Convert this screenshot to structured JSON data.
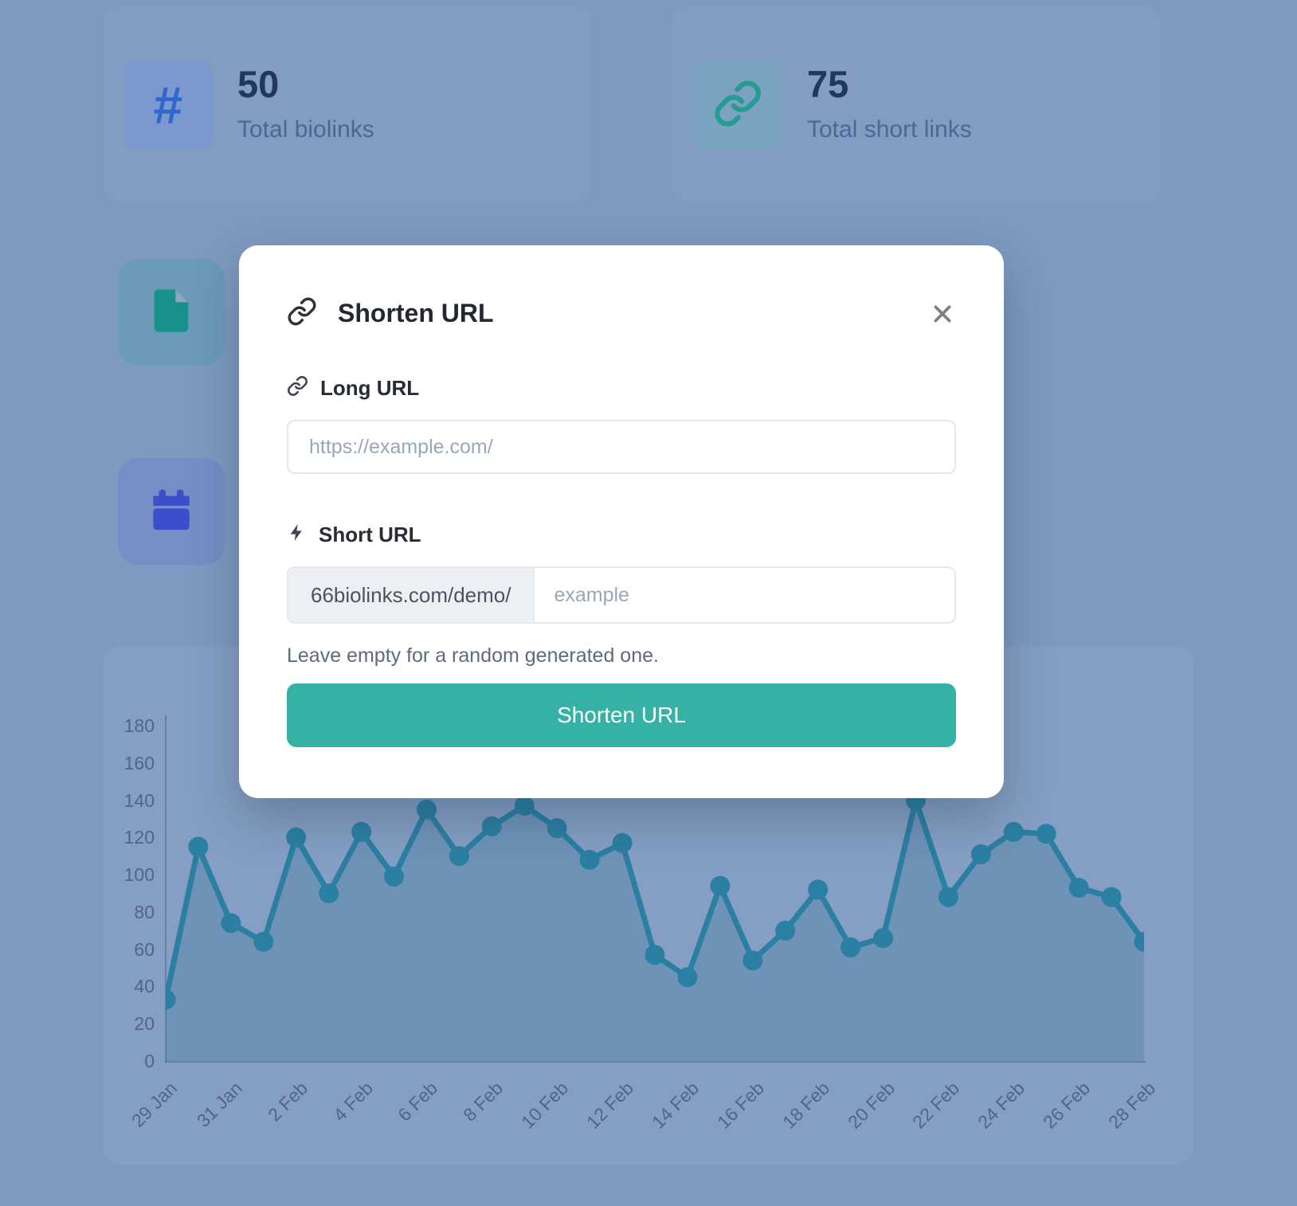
{
  "page": {
    "backdrop_color": "#7e9ac0"
  },
  "stats": [
    {
      "value": "50",
      "label": "Total biolinks",
      "icon": "hash-icon",
      "icon_color": "#2e68cf"
    },
    {
      "value": "75",
      "label": "Total short links",
      "icon": "chain-link-icon",
      "icon_color": "#279a92"
    }
  ],
  "side_tiles": [
    {
      "icon": "file-icon",
      "icon_color": "#17918a"
    },
    {
      "icon": "calendar-icon",
      "icon_color": "#3a4fc9"
    }
  ],
  "modal": {
    "title": "Shorten URL",
    "accent": "#35b2a5",
    "long_url": {
      "label": "Long URL",
      "value": "",
      "placeholder": "https://example.com/"
    },
    "short_url": {
      "label": "Short URL",
      "prefix": "66biolinks.com/demo/",
      "value": "",
      "placeholder": "example",
      "helper": "Leave empty for a random generated one."
    },
    "submit_label": "Shorten URL"
  },
  "chart_data": {
    "type": "line",
    "title": "",
    "xlabel": "",
    "ylabel": "",
    "categories": [
      "29 Jan",
      "30 Jan",
      "31 Jan",
      "1 Feb",
      "2 Feb",
      "3 Feb",
      "4 Feb",
      "5 Feb",
      "6 Feb",
      "7 Feb",
      "8 Feb",
      "9 Feb",
      "10 Feb",
      "11 Feb",
      "12 Feb",
      "13 Feb",
      "14 Feb",
      "15 Feb",
      "16 Feb",
      "17 Feb",
      "18 Feb",
      "19 Feb",
      "20 Feb",
      "21 Feb",
      "22 Feb",
      "23 Feb",
      "24 Feb",
      "25 Feb",
      "26 Feb",
      "27 Feb",
      "28 Feb"
    ],
    "values": [
      33,
      115,
      74,
      64,
      120,
      90,
      123,
      99,
      135,
      110,
      126,
      137,
      125,
      108,
      117,
      57,
      45,
      94,
      54,
      70,
      92,
      61,
      66,
      140,
      88,
      111,
      123,
      122,
      93,
      88,
      64
    ],
    "x_tick_labels": [
      "29 Jan",
      "31 Jan",
      "2 Feb",
      "4 Feb",
      "6 Feb",
      "8 Feb",
      "10 Feb",
      "12 Feb",
      "14 Feb",
      "16 Feb",
      "18 Feb",
      "20 Feb",
      "22 Feb",
      "24 Feb",
      "26 Feb",
      "28 Feb"
    ],
    "y_ticks": [
      0,
      20,
      40,
      60,
      80,
      100,
      120,
      140,
      160,
      180
    ],
    "ylim": [
      0,
      180
    ],
    "grid": false,
    "legend": false,
    "line_color": "#2b7fa2",
    "fill_color": "rgba(43,111,146,0.25)",
    "marker": "circle"
  }
}
